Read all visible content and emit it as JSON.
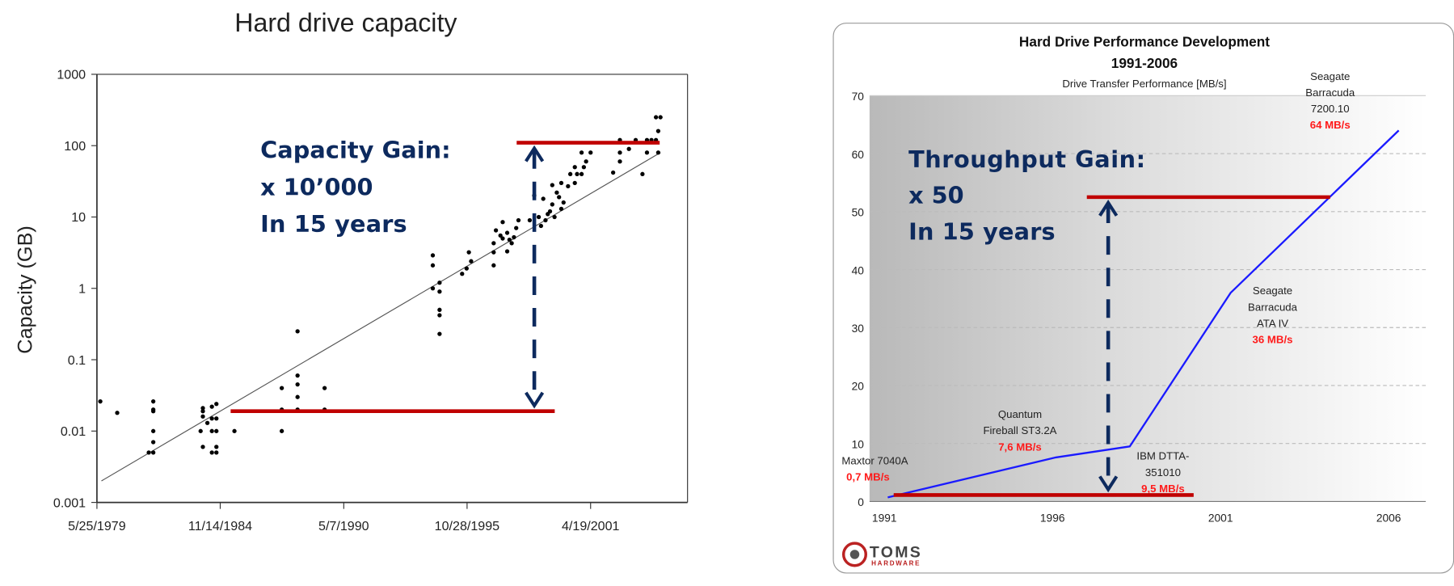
{
  "chart_data": [
    {
      "type": "scatter",
      "title": "Hard drive capacity",
      "xlabel": "",
      "ylabel": "Capacity (GB)",
      "yscale": "log",
      "ylim": [
        0.001,
        1000
      ],
      "y_ticks": [
        "1000",
        "100",
        "10",
        "1",
        "0.1",
        "0.01",
        "0.001"
      ],
      "y_tick_values": [
        1000,
        100,
        10,
        1,
        0.1,
        0.01,
        0.001
      ],
      "x_ticks": [
        "5/25/1979",
        "11/14/1984",
        "5/7/1990",
        "10/28/1995",
        "4/19/2001"
      ],
      "x_tick_values": [
        1979.4,
        1984.87,
        1990.35,
        1995.82,
        2001.3
      ],
      "xlim": [
        1979.4,
        2005.6
      ],
      "points": [
        [
          1979.55,
          0.026
        ],
        [
          1980.3,
          0.018
        ],
        [
          1981.9,
          0.026
        ],
        [
          1981.9,
          0.02
        ],
        [
          1981.9,
          0.019
        ],
        [
          1981.9,
          0.01
        ],
        [
          1981.9,
          0.007
        ],
        [
          1981.7,
          0.005
        ],
        [
          1981.9,
          0.005
        ],
        [
          1984.1,
          0.021
        ],
        [
          1984.1,
          0.019
        ],
        [
          1984.5,
          0.022
        ],
        [
          1984.7,
          0.024
        ],
        [
          1984.1,
          0.016
        ],
        [
          1984.5,
          0.015
        ],
        [
          1984.7,
          0.015
        ],
        [
          1984.3,
          0.013
        ],
        [
          1984.0,
          0.01
        ],
        [
          1984.5,
          0.01
        ],
        [
          1984.7,
          0.01
        ],
        [
          1984.1,
          0.006
        ],
        [
          1984.7,
          0.006
        ],
        [
          1984.5,
          0.005
        ],
        [
          1984.7,
          0.005
        ],
        [
          1985.5,
          0.01
        ],
        [
          1987.6,
          0.04
        ],
        [
          1987.6,
          0.02
        ],
        [
          1987.6,
          0.01
        ],
        [
          1988.3,
          0.25
        ],
        [
          1988.3,
          0.06
        ],
        [
          1988.3,
          0.045
        ],
        [
          1988.3,
          0.03
        ],
        [
          1988.3,
          0.02
        ],
        [
          1989.5,
          0.04
        ],
        [
          1989.5,
          0.02
        ],
        [
          1994.3,
          2.9
        ],
        [
          1994.3,
          2.1
        ],
        [
          1994.3,
          1.0
        ],
        [
          1994.6,
          1.2
        ],
        [
          1994.6,
          0.9
        ],
        [
          1994.6,
          0.5
        ],
        [
          1994.6,
          0.42
        ],
        [
          1994.6,
          0.23
        ],
        [
          1995.6,
          1.6
        ],
        [
          1995.8,
          1.9
        ],
        [
          1995.9,
          3.2
        ],
        [
          1996.0,
          2.4
        ],
        [
          1997.0,
          2.1
        ],
        [
          1997.0,
          3.2
        ],
        [
          1997.0,
          4.3
        ],
        [
          1997.1,
          6.5
        ],
        [
          1997.4,
          5.0
        ],
        [
          1997.4,
          8.5
        ],
        [
          1997.6,
          3.3
        ],
        [
          1997.6,
          6.0
        ],
        [
          1997.8,
          4.3
        ],
        [
          1997.9,
          5.2
        ],
        [
          1998.0,
          7.0
        ],
        [
          1998.1,
          9.0
        ],
        [
          1997.3,
          5.5
        ],
        [
          1997.7,
          4.8
        ],
        [
          1998.6,
          9.0
        ],
        [
          1998.8,
          20
        ],
        [
          1999.0,
          10
        ],
        [
          1999.1,
          7.5
        ],
        [
          1999.3,
          9.0
        ],
        [
          1999.2,
          18
        ],
        [
          1999.5,
          12
        ],
        [
          1999.6,
          15
        ],
        [
          1999.6,
          28
        ],
        [
          1999.8,
          22
        ],
        [
          1999.9,
          19
        ],
        [
          2000.0,
          30
        ],
        [
          2000.1,
          16
        ],
        [
          2000.0,
          13
        ],
        [
          1999.7,
          10
        ],
        [
          1999.4,
          11
        ],
        [
          2000.3,
          27
        ],
        [
          2000.4,
          40
        ],
        [
          2000.6,
          30
        ],
        [
          2000.7,
          40
        ],
        [
          2000.9,
          40
        ],
        [
          2000.9,
          80
        ],
        [
          2001.1,
          60
        ],
        [
          2001.3,
          80
        ],
        [
          2000.6,
          50
        ],
        [
          2001.0,
          50
        ],
        [
          2002.3,
          42
        ],
        [
          2002.6,
          60
        ],
        [
          2002.6,
          80
        ],
        [
          2002.6,
          120
        ],
        [
          2003.0,
          90
        ],
        [
          2003.3,
          120
        ],
        [
          2003.6,
          40
        ],
        [
          2003.8,
          80
        ],
        [
          2003.8,
          120
        ],
        [
          2004.0,
          120
        ],
        [
          2004.2,
          120
        ],
        [
          2004.3,
          160
        ],
        [
          2004.2,
          250
        ],
        [
          2004.4,
          250
        ],
        [
          2004.3,
          80
        ]
      ],
      "trendline": [
        [
          1979.6,
          0.002
        ],
        [
          2004.4,
          80
        ]
      ],
      "annotation": {
        "lines": [
          "Capacity Gain:",
          "x 10’000",
          "In 15 years"
        ],
        "low_level_gb": 0.019,
        "high_level_gb": 110,
        "color": "#0d2a5e",
        "marker_color": "#c00000"
      }
    },
    {
      "type": "line",
      "title": "Hard Drive Performance Development",
      "subtitle": "1991-2006",
      "ylabel": "Drive Transfer Performance [MB/s]",
      "ylim": [
        0,
        70
      ],
      "xlim": [
        1990.6,
        2007.1
      ],
      "y_ticks": [
        "0",
        "10",
        "20",
        "30",
        "40",
        "50",
        "60",
        "70"
      ],
      "y_tick_values": [
        0,
        10,
        20,
        30,
        40,
        50,
        60,
        70
      ],
      "x_ticks": [
        "1991",
        "1996",
        "2001",
        "2006"
      ],
      "x_tick_values": [
        1991,
        1996,
        2001,
        2006
      ],
      "grid": true,
      "series": [
        {
          "name": "Drive Transfer Performance",
          "color": "#1a1aff",
          "x": [
            1991.1,
            1996.1,
            1998.3,
            2001.3,
            2006.3
          ],
          "values": [
            0.7,
            7.6,
            9.5,
            36,
            64
          ]
        }
      ],
      "labels": [
        {
          "name": [
            "Maxtor 7040A"
          ],
          "value": "0,7 MB/s"
        },
        {
          "name": [
            "Quantum",
            "Fireball ST3.2A"
          ],
          "value": "7,6 MB/s"
        },
        {
          "name": [
            "IBM DTTA-",
            "351010"
          ],
          "value": "9,5 MB/s"
        },
        {
          "name": [
            "Seagate",
            "Barracuda",
            "ATA IV"
          ],
          "value": "36 MB/s"
        },
        {
          "name": [
            "Seagate",
            "Barracuda",
            "7200.10"
          ],
          "value": "64 MB/s"
        }
      ],
      "annotation": {
        "lines": [
          "Throughput Gain:",
          "x 50",
          "In 15 years"
        ],
        "low_level": 1.0,
        "high_level": 52.5
      },
      "logo": {
        "line1": "TOMS",
        "line2": "HARDWARE"
      }
    }
  ]
}
